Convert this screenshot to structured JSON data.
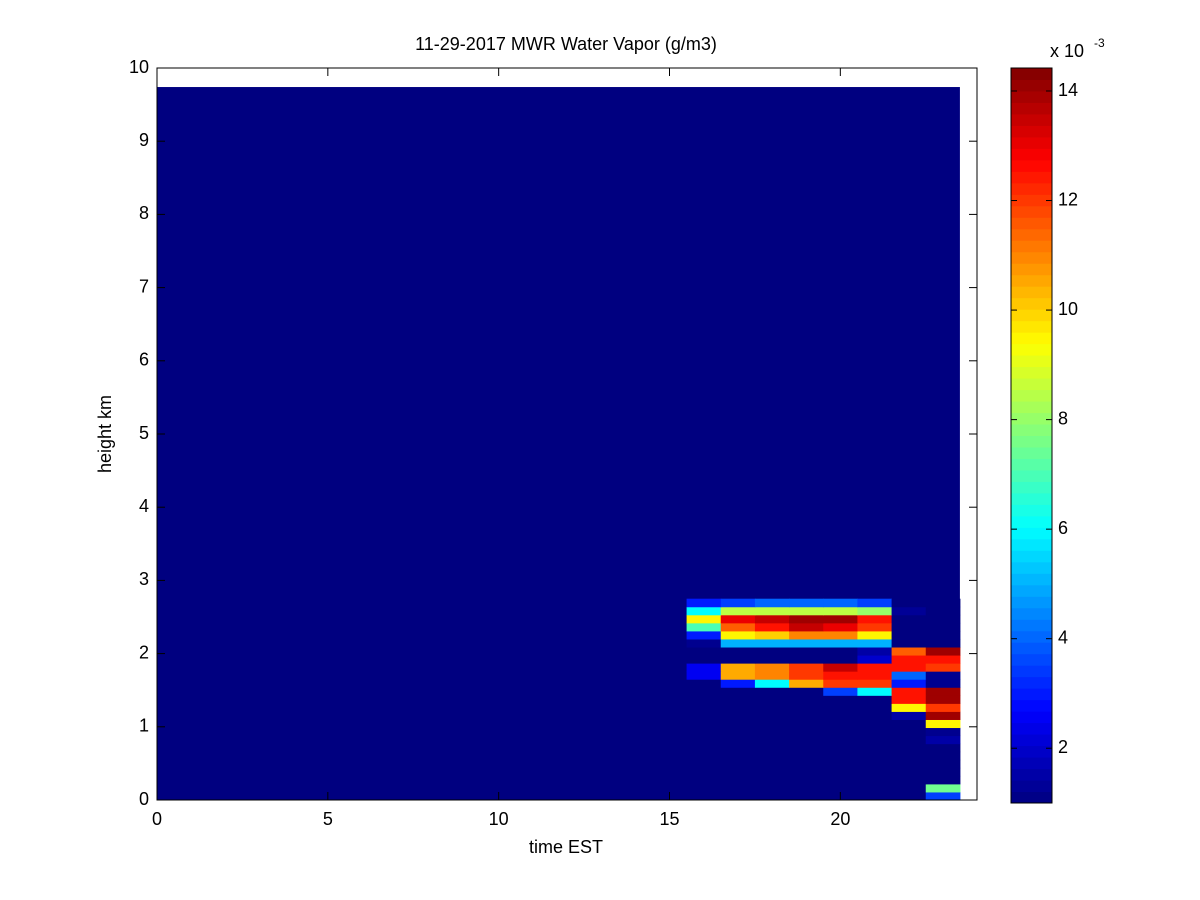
{
  "chart_data": {
    "type": "heatmap",
    "title": "11-29-2017 MWR Water Vapor (g/m3)",
    "xlabel": "time EST",
    "ylabel": "height km",
    "xlim": [
      0,
      24
    ],
    "xticks": [
      0,
      5,
      10,
      15,
      20
    ],
    "ylim": [
      0,
      10
    ],
    "yticks": [
      0,
      1,
      2,
      3,
      4,
      5,
      6,
      7,
      8,
      9,
      10
    ],
    "colormap": "jet",
    "clim": [
      1,
      14.42
    ],
    "cticks": [
      2,
      4,
      6,
      8,
      10,
      12,
      14
    ],
    "colorbar_scale": "x 10",
    "colorbar_exponent": "-3",
    "background": {
      "x": [
        0,
        23.5
      ],
      "y": [
        0,
        9.74
      ],
      "value": 1
    },
    "x_edges": [
      15.5,
      16.5,
      17.5,
      18.5,
      19.5,
      20.5,
      21.5,
      22.5,
      23.5
    ],
    "y_edges": [
      0,
      0.11,
      0.22,
      0.33,
      0.44,
      0.55,
      0.66,
      0.77,
      0.88,
      0.99,
      1.1,
      1.21,
      1.32,
      1.43,
      1.54,
      1.65,
      1.76,
      1.87,
      1.98,
      2.09,
      2.2,
      2.31,
      2.42,
      2.53,
      2.64,
      2.75
    ],
    "values": [
      [
        1,
        1,
        1,
        1,
        1,
        1,
        1,
        3.5
      ],
      [
        1,
        1,
        1,
        1,
        1,
        1,
        1,
        7.5
      ],
      [
        1,
        1,
        1,
        1,
        1,
        1,
        1,
        1
      ],
      [
        1,
        1,
        1,
        1,
        1,
        1,
        1,
        1
      ],
      [
        1,
        1,
        1,
        1,
        1,
        1,
        1,
        1
      ],
      [
        1,
        1,
        1,
        1,
        1,
        1,
        1,
        1
      ],
      [
        1,
        1,
        1,
        1,
        1,
        1,
        1,
        1
      ],
      [
        1,
        1,
        1,
        1,
        1,
        1,
        1,
        1.5
      ],
      [
        1,
        1,
        1,
        1,
        1,
        1,
        1,
        1.2
      ],
      [
        1,
        1,
        1,
        1,
        1,
        1,
        1,
        9.5
      ],
      [
        1,
        1,
        1,
        1,
        1,
        1,
        1.5,
        14
      ],
      [
        1,
        1,
        1,
        1,
        1,
        1,
        9.5,
        12
      ],
      [
        1,
        1,
        1,
        1,
        1,
        1,
        12.5,
        14
      ],
      [
        1,
        1,
        1,
        1,
        3.5,
        6,
        12.5,
        14
      ],
      [
        1,
        3,
        6,
        10.5,
        12,
        12,
        3,
        1.2
      ],
      [
        2.5,
        10.5,
        11,
        12,
        12.5,
        12.5,
        4,
        1.2
      ],
      [
        2.5,
        10.5,
        11,
        12,
        13.5,
        12.5,
        12.5,
        12
      ],
      [
        1,
        1,
        1,
        1,
        1,
        2,
        12.5,
        12.5
      ],
      [
        1,
        1,
        1,
        1,
        1,
        1.5,
        11.5,
        14
      ],
      [
        1.2,
        5,
        5,
        5,
        5,
        5,
        1,
        1
      ],
      [
        3,
        9.5,
        10,
        11,
        11,
        9.5,
        1,
        1
      ],
      [
        7,
        11.5,
        12.5,
        13.5,
        13,
        12,
        1,
        1
      ],
      [
        9.5,
        13,
        13.5,
        14,
        14,
        12.5,
        1,
        1
      ],
      [
        6,
        8.5,
        8.5,
        8.5,
        8.5,
        8,
        1.3,
        1
      ],
      [
        3,
        3.5,
        4,
        4,
        4,
        3.5,
        1,
        1
      ]
    ]
  }
}
